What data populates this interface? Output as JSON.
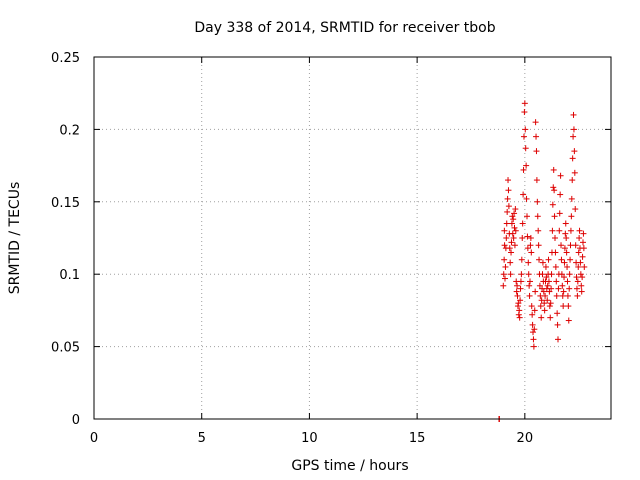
{
  "chart_data": {
    "type": "scatter",
    "title": "Day 338 of 2014, SRMTID for receiver tbob",
    "xlabel": "GPS time / hours",
    "ylabel": "SRMTID / TECUs",
    "xlim": [
      0,
      24
    ],
    "ylim": [
      0,
      0.25
    ],
    "x_ticks": [
      0,
      5,
      10,
      15,
      20
    ],
    "x_tick_labels": [
      "0",
      "5",
      "10",
      "15",
      "20"
    ],
    "y_ticks": [
      0,
      0.05,
      0.1,
      0.15,
      0.2,
      0.25
    ],
    "y_tick_labels": [
      "0",
      "0.05",
      "0.1",
      "0.15",
      "0.2",
      "0.25"
    ],
    "grid": true,
    "marker": "+",
    "series": [
      {
        "name": "SRMTID",
        "color": "#dd0000",
        "points": [
          [
            18.8,
            0.0
          ],
          [
            18.82,
            0.0
          ],
          [
            19.0,
            0.092
          ],
          [
            19.02,
            0.1
          ],
          [
            19.04,
            0.11
          ],
          [
            19.05,
            0.13
          ],
          [
            19.06,
            0.12
          ],
          [
            19.08,
            0.097
          ],
          [
            19.1,
            0.105
          ],
          [
            19.12,
            0.118
          ],
          [
            19.14,
            0.125
          ],
          [
            19.16,
            0.135
          ],
          [
            19.18,
            0.143
          ],
          [
            19.2,
            0.152
          ],
          [
            19.22,
            0.165
          ],
          [
            19.24,
            0.158
          ],
          [
            19.26,
            0.147
          ],
          [
            19.28,
            0.128
          ],
          [
            19.3,
            0.118
          ],
          [
            19.32,
            0.108
          ],
          [
            19.34,
            0.1
          ],
          [
            19.36,
            0.115
          ],
          [
            19.38,
            0.122
          ],
          [
            19.4,
            0.135
          ],
          [
            19.42,
            0.14
          ],
          [
            19.44,
            0.128
          ],
          [
            19.46,
            0.138
          ],
          [
            19.48,
            0.125
          ],
          [
            19.5,
            0.142
          ],
          [
            19.52,
            0.132
          ],
          [
            19.54,
            0.12
          ],
          [
            19.56,
            0.145
          ],
          [
            19.58,
            0.13
          ],
          [
            19.6,
            0.095
          ],
          [
            19.62,
            0.088
          ],
          [
            19.64,
            0.092
          ],
          [
            19.66,
            0.085
          ],
          [
            19.68,
            0.078
          ],
          [
            19.7,
            0.08
          ],
          [
            19.72,
            0.072
          ],
          [
            19.74,
            0.075
          ],
          [
            19.76,
            0.07
          ],
          [
            19.78,
            0.082
          ],
          [
            19.8,
            0.09
          ],
          [
            19.82,
            0.095
          ],
          [
            19.84,
            0.1
          ],
          [
            19.86,
            0.11
          ],
          [
            19.88,
            0.125
          ],
          [
            19.9,
            0.135
          ],
          [
            19.92,
            0.155
          ],
          [
            19.94,
            0.172
          ],
          [
            19.96,
            0.195
          ],
          [
            19.98,
            0.212
          ],
          [
            20.0,
            0.218
          ],
          [
            20.02,
            0.2
          ],
          [
            20.04,
            0.187
          ],
          [
            20.06,
            0.175
          ],
          [
            20.08,
            0.152
          ],
          [
            20.1,
            0.14
          ],
          [
            20.12,
            0.126
          ],
          [
            20.14,
            0.118
          ],
          [
            20.16,
            0.108
          ],
          [
            20.18,
            0.1
          ],
          [
            20.2,
            0.092
          ],
          [
            20.22,
            0.085
          ],
          [
            20.24,
            0.095
          ],
          [
            20.26,
            0.12
          ],
          [
            20.28,
            0.125
          ],
          [
            20.3,
            0.115
          ],
          [
            20.32,
            0.078
          ],
          [
            20.34,
            0.072
          ],
          [
            20.36,
            0.065
          ],
          [
            20.38,
            0.06
          ],
          [
            20.4,
            0.055
          ],
          [
            20.42,
            0.05
          ],
          [
            20.44,
            0.062
          ],
          [
            20.46,
            0.075
          ],
          [
            20.48,
            0.088
          ],
          [
            20.5,
            0.205
          ],
          [
            20.52,
            0.195
          ],
          [
            20.54,
            0.185
          ],
          [
            20.56,
            0.165
          ],
          [
            20.58,
            0.15
          ],
          [
            20.6,
            0.14
          ],
          [
            20.62,
            0.13
          ],
          [
            20.64,
            0.12
          ],
          [
            20.66,
            0.11
          ],
          [
            20.68,
            0.1
          ],
          [
            20.7,
            0.092
          ],
          [
            20.72,
            0.085
          ],
          [
            20.74,
            0.078
          ],
          [
            20.76,
            0.07
          ],
          [
            20.78,
            0.082
          ],
          [
            20.8,
            0.09
          ],
          [
            20.82,
            0.1
          ],
          [
            20.84,
            0.108
          ],
          [
            20.86,
            0.095
          ],
          [
            20.88,
            0.088
          ],
          [
            20.9,
            0.08
          ],
          [
            20.92,
            0.075
          ],
          [
            20.94,
            0.085
          ],
          [
            20.96,
            0.095
          ],
          [
            20.98,
            0.105
          ],
          [
            21.0,
            0.098
          ],
          [
            21.02,
            0.09
          ],
          [
            21.04,
            0.082
          ],
          [
            21.06,
            0.092
          ],
          [
            21.08,
            0.1
          ],
          [
            21.1,
            0.11
          ],
          [
            21.12,
            0.095
          ],
          [
            21.14,
            0.088
          ],
          [
            21.16,
            0.078
          ],
          [
            21.18,
            0.07
          ],
          [
            21.2,
            0.08
          ],
          [
            21.22,
            0.09
          ],
          [
            21.24,
            0.1
          ],
          [
            21.26,
            0.115
          ],
          [
            21.28,
            0.13
          ],
          [
            21.3,
            0.148
          ],
          [
            21.32,
            0.16
          ],
          [
            21.34,
            0.172
          ],
          [
            21.36,
            0.158
          ],
          [
            21.38,
            0.14
          ],
          [
            21.4,
            0.125
          ],
          [
            21.42,
            0.115
          ],
          [
            21.44,
            0.105
          ],
          [
            21.46,
            0.095
          ],
          [
            21.48,
            0.085
          ],
          [
            21.5,
            0.073
          ],
          [
            21.52,
            0.065
          ],
          [
            21.54,
            0.055
          ],
          [
            21.56,
            0.09
          ],
          [
            21.58,
            0.1
          ],
          [
            21.6,
            0.13
          ],
          [
            21.62,
            0.142
          ],
          [
            21.64,
            0.155
          ],
          [
            21.66,
            0.168
          ],
          [
            21.68,
            0.12
          ],
          [
            21.7,
            0.11
          ],
          [
            21.72,
            0.1
          ],
          [
            21.74,
            0.092
          ],
          [
            21.76,
            0.085
          ],
          [
            21.78,
            0.078
          ],
          [
            21.8,
            0.088
          ],
          [
            21.82,
            0.098
          ],
          [
            21.84,
            0.108
          ],
          [
            21.86,
            0.118
          ],
          [
            21.88,
            0.128
          ],
          [
            21.9,
            0.135
          ],
          [
            21.92,
            0.125
          ],
          [
            21.94,
            0.115
          ],
          [
            21.96,
            0.105
          ],
          [
            21.98,
            0.095
          ],
          [
            22.0,
            0.085
          ],
          [
            22.02,
            0.078
          ],
          [
            22.04,
            0.068
          ],
          [
            22.06,
            0.09
          ],
          [
            22.08,
            0.1
          ],
          [
            22.1,
            0.11
          ],
          [
            22.12,
            0.12
          ],
          [
            22.14,
            0.13
          ],
          [
            22.16,
            0.14
          ],
          [
            22.18,
            0.152
          ],
          [
            22.2,
            0.165
          ],
          [
            22.22,
            0.18
          ],
          [
            22.24,
            0.195
          ],
          [
            22.26,
            0.21
          ],
          [
            22.28,
            0.2
          ],
          [
            22.3,
            0.185
          ],
          [
            22.32,
            0.17
          ],
          [
            22.34,
            0.145
          ],
          [
            22.36,
            0.12
          ],
          [
            22.38,
            0.108
          ],
          [
            22.4,
            0.098
          ],
          [
            22.42,
            0.09
          ],
          [
            22.44,
            0.085
          ],
          [
            22.46,
            0.095
          ],
          [
            22.48,
            0.105
          ],
          [
            22.5,
            0.115
          ],
          [
            22.52,
            0.125
          ],
          [
            22.54,
            0.13
          ],
          [
            22.56,
            0.118
          ],
          [
            22.58,
            0.108
          ],
          [
            22.6,
            0.1
          ],
          [
            22.62,
            0.092
          ],
          [
            22.64,
            0.088
          ],
          [
            22.66,
            0.098
          ],
          [
            22.68,
            0.112
          ],
          [
            22.7,
            0.122
          ],
          [
            22.72,
            0.128
          ],
          [
            22.74,
            0.118
          ],
          [
            22.76,
            0.105
          ]
        ]
      }
    ]
  }
}
